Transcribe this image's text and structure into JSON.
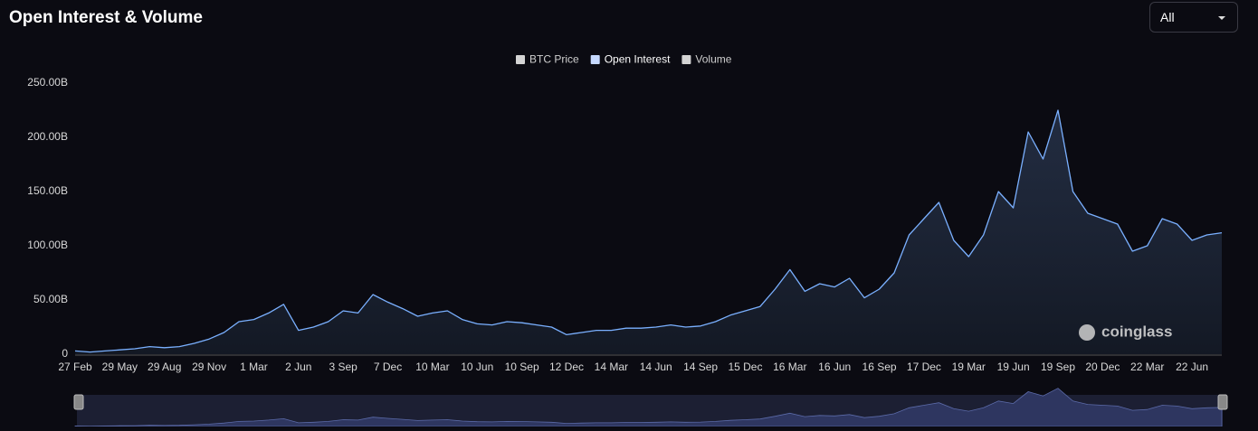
{
  "ui": {
    "range": "All",
    "watermark": "coinglass"
  },
  "chart_data": {
    "type": "line",
    "title": "Open Interest & Volume",
    "categories": [
      "27 Feb",
      null,
      null,
      "29 May",
      null,
      null,
      "29 Aug",
      null,
      null,
      "29 Nov",
      null,
      null,
      "1 Mar",
      null,
      null,
      "2 Jun",
      null,
      null,
      "3 Sep",
      null,
      null,
      "7 Dec",
      null,
      null,
      "10 Mar",
      null,
      null,
      "10 Jun",
      null,
      null,
      "10 Sep",
      null,
      null,
      "12 Dec",
      null,
      null,
      "14 Mar",
      null,
      null,
      "14 Jun",
      null,
      null,
      "14 Sep",
      null,
      null,
      "15 Dec",
      null,
      null,
      "16 Mar",
      null,
      null,
      "16 Jun",
      null,
      null,
      "16 Sep",
      null,
      null,
      "17 Dec",
      null,
      null,
      "19 Mar",
      null,
      null,
      "19 Jun",
      null,
      null,
      "19 Sep",
      null,
      null,
      "20 Dec",
      null,
      null,
      "22 Mar",
      null,
      null,
      "22 Jun",
      null,
      null
    ],
    "series": [
      {
        "name": "BTC Price",
        "color": "#d4d4d4",
        "visible": false
      },
      {
        "name": "Open Interest",
        "color": "#7ab0ff",
        "legend_color": "#c6d9ff",
        "visible": true,
        "values": [
          3,
          2,
          3,
          4,
          5,
          7,
          6,
          7,
          10,
          14,
          20,
          30,
          32,
          38,
          46,
          22,
          25,
          30,
          40,
          38,
          55,
          48,
          42,
          35,
          38,
          40,
          32,
          28,
          27,
          30,
          29,
          27,
          25,
          18,
          20,
          22,
          22,
          24,
          24,
          25,
          27,
          25,
          26,
          30,
          36,
          40,
          44,
          60,
          78,
          58,
          65,
          62,
          70,
          52,
          60,
          75,
          110,
          125,
          140,
          105,
          90,
          110,
          150,
          135,
          205,
          180,
          225,
          150,
          130,
          125,
          120,
          95,
          100,
          125,
          120,
          105,
          110,
          112
        ]
      },
      {
        "name": "Volume",
        "color": "#d4d4d4",
        "visible": false
      }
    ],
    "ylim": [
      0,
      250
    ],
    "yticks": [
      0,
      {
        "value": 50,
        "label": "50.00B"
      },
      {
        "value": 100,
        "label": "100.00B"
      },
      {
        "value": 150,
        "label": "150.00B"
      },
      {
        "value": 200,
        "label": "200.00B"
      },
      {
        "value": 250,
        "label": "250.00B"
      }
    ],
    "grid": false
  }
}
